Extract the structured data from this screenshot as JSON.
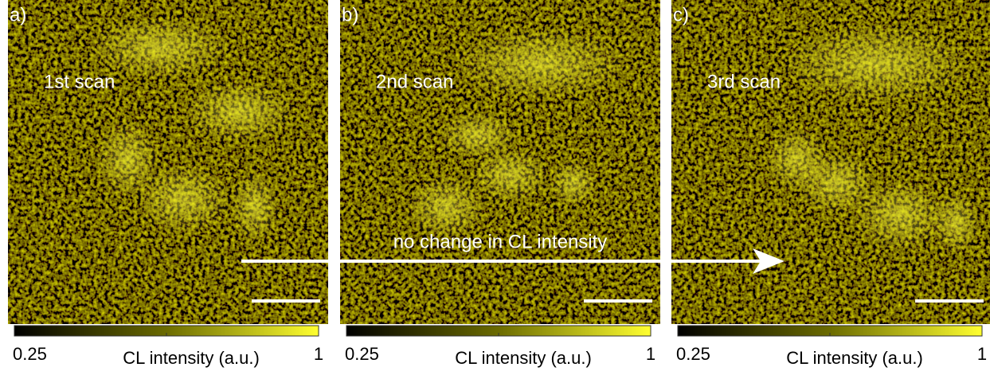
{
  "panels": [
    {
      "label": "a)",
      "scan": "1st scan",
      "colorbar": {
        "min": 0.25,
        "title": "CL intensity (a.u.)",
        "max": 1
      }
    },
    {
      "label": "b)",
      "scan": "2nd scan",
      "colorbar": {
        "min": 0.25,
        "title": "CL intensity (a.u.)",
        "max": 1
      }
    },
    {
      "label": "c)",
      "scan": "3rd scan",
      "colorbar": {
        "min": 0.25,
        "title": "CL intensity (a.u.)",
        "max": 1
      }
    }
  ],
  "arrow_text": "no change in CL intensity"
}
